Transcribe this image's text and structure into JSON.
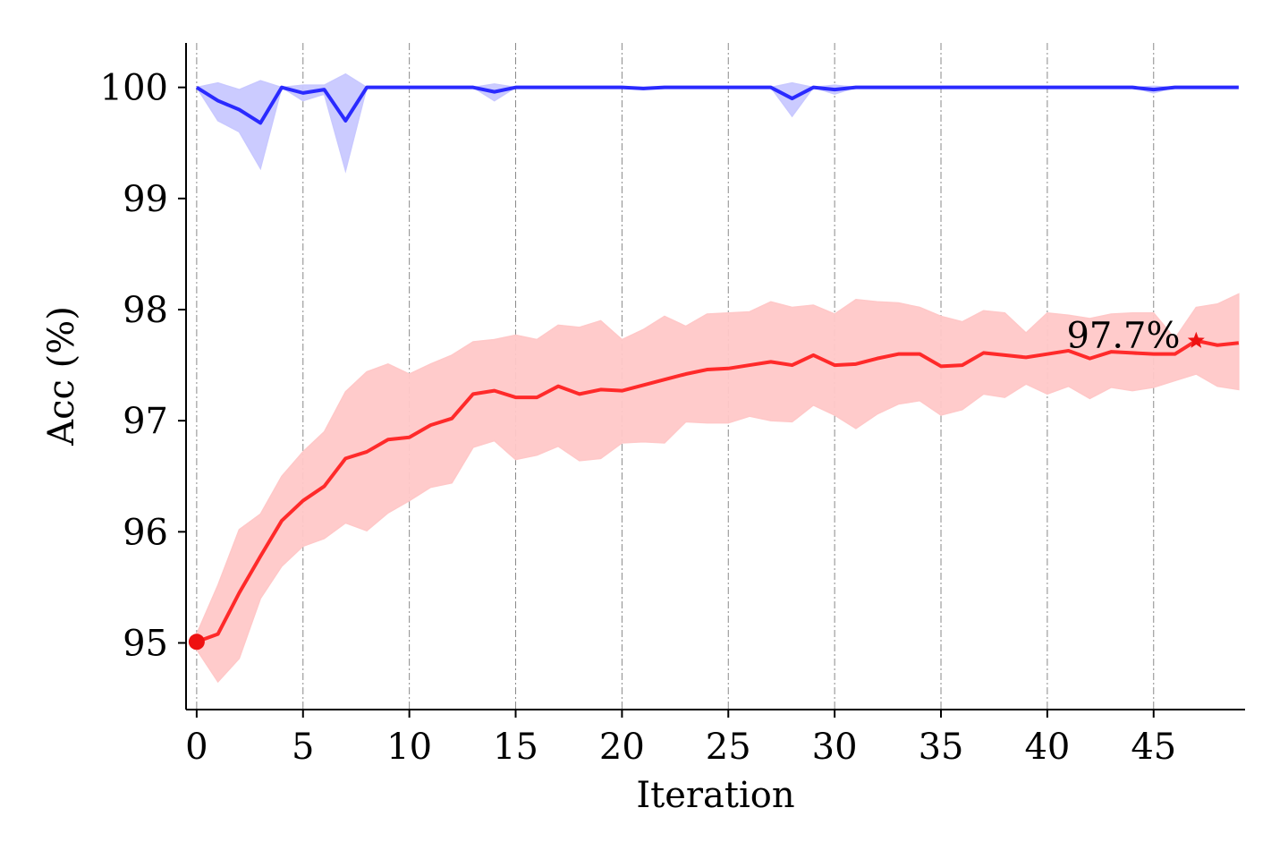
{
  "chart_data": {
    "type": "line",
    "title": "",
    "xlabel": "Iteration",
    "ylabel": "Acc (%)",
    "xlim": [
      -0.5,
      49.3
    ],
    "ylim": [
      94.4,
      100.4
    ],
    "xticks": [
      0,
      5,
      10,
      15,
      20,
      25,
      30,
      35,
      40,
      45
    ],
    "yticks": [
      95,
      96,
      97,
      98,
      99,
      100
    ],
    "grid": "vertical dashed lines at x ticks",
    "x": [
      0,
      1,
      2,
      3,
      4,
      5,
      6,
      7,
      8,
      9,
      10,
      11,
      12,
      13,
      14,
      15,
      16,
      17,
      18,
      19,
      20,
      21,
      22,
      23,
      24,
      25,
      26,
      27,
      28,
      29,
      30,
      31,
      32,
      33,
      34,
      35,
      36,
      37,
      38,
      39,
      40,
      41,
      42,
      43,
      44,
      45,
      46,
      47,
      48,
      49
    ],
    "series": [
      {
        "color": "#2a2aff",
        "band_color": "#c8c8ff",
        "mean": [
          100,
          99.88,
          99.8,
          99.68,
          100,
          99.95,
          99.98,
          99.7,
          100,
          100,
          100,
          100,
          100,
          100,
          99.96,
          100,
          100,
          100,
          100,
          100,
          100,
          99.99,
          100,
          100,
          100,
          100,
          100,
          100,
          99.9,
          100,
          99.98,
          100,
          100,
          100,
          100,
          100,
          100,
          100,
          100,
          100,
          100,
          100,
          100,
          100,
          100,
          99.98,
          100,
          100,
          100,
          100
        ],
        "upper": [
          100,
          100.04,
          99.98,
          100.06,
          100,
          100.02,
          100.02,
          100.12,
          100,
          100,
          100,
          100,
          100,
          100,
          100.03,
          100,
          100,
          100,
          100,
          100,
          100,
          100,
          100,
          100,
          100,
          100,
          100,
          100,
          100.04,
          100,
          100.02,
          100,
          100,
          100,
          100,
          100,
          100,
          100,
          100,
          100,
          100,
          100,
          100,
          100,
          100,
          100.01,
          100,
          100,
          100,
          100
        ],
        "lower": [
          100,
          99.7,
          99.6,
          99.27,
          100,
          99.88,
          99.94,
          99.25,
          100,
          100,
          100,
          100,
          100,
          100,
          99.88,
          100,
          100,
          100,
          100,
          100,
          100,
          99.98,
          100,
          100,
          100,
          100,
          100,
          100,
          99.74,
          100,
          99.94,
          100,
          100,
          100,
          100,
          100,
          100,
          100,
          100,
          100,
          100,
          100,
          100,
          100,
          100,
          99.95,
          100,
          100,
          100,
          100
        ]
      },
      {
        "color": "#ff2a2a",
        "band_color": "#ffc8c8",
        "mean": [
          95.01,
          95.08,
          95.45,
          95.78,
          96.1,
          96.28,
          96.41,
          96.66,
          96.72,
          96.83,
          96.85,
          96.96,
          97.02,
          97.24,
          97.27,
          97.21,
          97.21,
          97.31,
          97.24,
          97.28,
          97.27,
          97.32,
          97.37,
          97.42,
          97.46,
          97.47,
          97.5,
          97.53,
          97.5,
          97.59,
          97.5,
          97.51,
          97.56,
          97.6,
          97.6,
          97.49,
          97.5,
          97.61,
          97.59,
          97.57,
          97.6,
          97.63,
          97.56,
          97.62,
          97.61,
          97.6,
          97.6,
          97.72,
          97.68,
          97.7
        ],
        "upper": [
          95.08,
          95.52,
          96.02,
          96.16,
          96.5,
          96.72,
          96.9,
          97.26,
          97.44,
          97.51,
          97.42,
          97.51,
          97.59,
          97.71,
          97.73,
          97.77,
          97.73,
          97.86,
          97.84,
          97.9,
          97.73,
          97.82,
          97.94,
          97.85,
          97.96,
          97.97,
          97.98,
          98.07,
          98.02,
          98.04,
          97.96,
          98.09,
          98.07,
          98.06,
          98.02,
          97.94,
          97.89,
          97.99,
          97.97,
          97.79,
          97.97,
          97.95,
          97.92,
          97.96,
          97.97,
          97.97,
          97.74,
          98.02,
          98.05,
          98.14
        ],
        "lower": [
          94.94,
          94.65,
          94.86,
          95.4,
          95.69,
          95.87,
          95.94,
          96.08,
          96.01,
          96.17,
          96.28,
          96.4,
          96.44,
          96.76,
          96.82,
          96.65,
          96.69,
          96.77,
          96.64,
          96.66,
          96.8,
          96.81,
          96.8,
          96.99,
          96.98,
          96.98,
          97.04,
          97.0,
          96.99,
          97.14,
          97.05,
          96.93,
          97.06,
          97.15,
          97.18,
          97.05,
          97.1,
          97.24,
          97.21,
          97.33,
          97.24,
          97.31,
          97.2,
          97.3,
          97.27,
          97.3,
          97.36,
          97.42,
          97.31,
          97.28
        ]
      }
    ],
    "markers": [
      {
        "shape": "circle",
        "x": 0,
        "y": 95.01,
        "color": "#ee1111"
      },
      {
        "shape": "star",
        "x": 47,
        "y": 97.72,
        "color": "#ee1111"
      }
    ],
    "annotations": [
      {
        "text": "97.7%",
        "x": 44.0,
        "y": 97.77
      }
    ]
  }
}
